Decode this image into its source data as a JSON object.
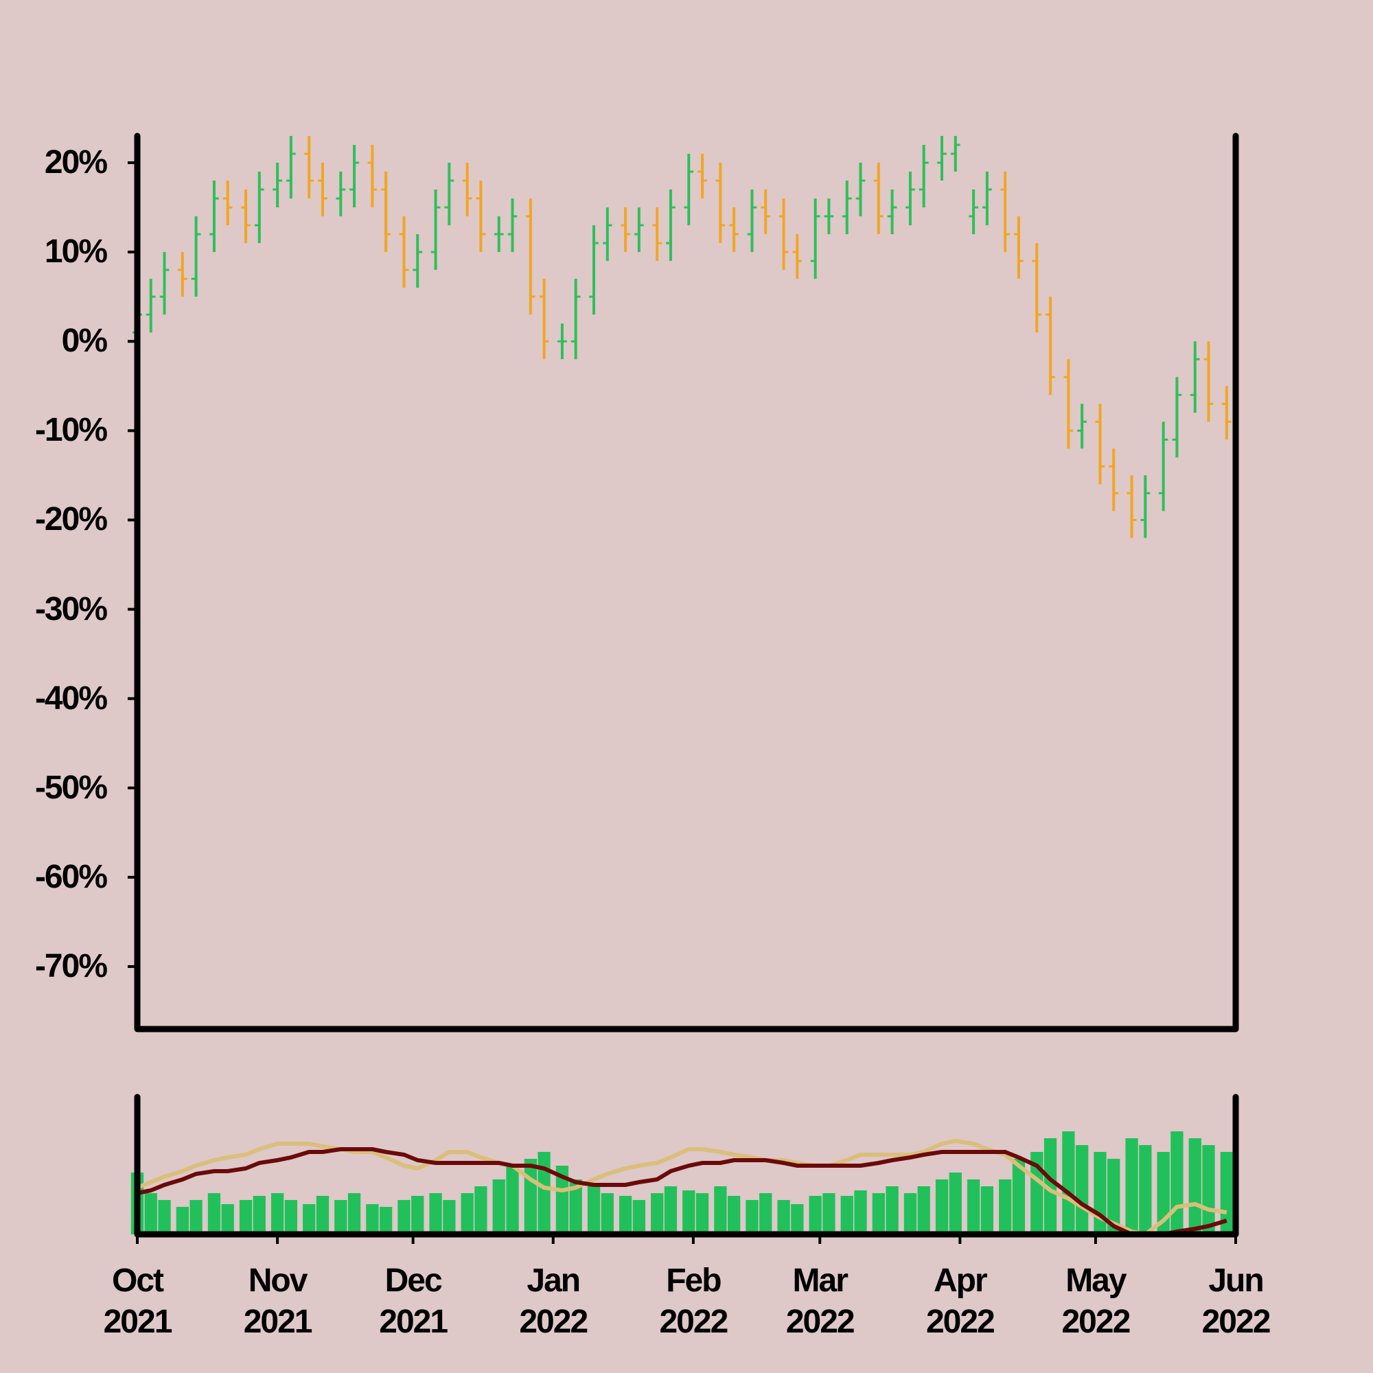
{
  "chart_data": {
    "type": "ohlc",
    "x": [
      "2021-10-01",
      "2021-10-04",
      "2021-10-07",
      "2021-10-11",
      "2021-10-14",
      "2021-10-18",
      "2021-10-21",
      "2021-10-25",
      "2021-10-28",
      "2021-11-01",
      "2021-11-04",
      "2021-11-08",
      "2021-11-11",
      "2021-11-15",
      "2021-11-18",
      "2021-11-22",
      "2021-11-25",
      "2021-11-29",
      "2021-12-02",
      "2021-12-06",
      "2021-12-09",
      "2021-12-13",
      "2021-12-16",
      "2021-12-20",
      "2021-12-23",
      "2021-12-27",
      "2021-12-30",
      "2022-01-03",
      "2022-01-06",
      "2022-01-10",
      "2022-01-13",
      "2022-01-17",
      "2022-01-20",
      "2022-01-24",
      "2022-01-27",
      "2022-01-31",
      "2022-02-03",
      "2022-02-07",
      "2022-02-10",
      "2022-02-14",
      "2022-02-17",
      "2022-02-21",
      "2022-02-24",
      "2022-02-28",
      "2022-03-03",
      "2022-03-07",
      "2022-03-10",
      "2022-03-14",
      "2022-03-17",
      "2022-03-21",
      "2022-03-24",
      "2022-03-28",
      "2022-03-31",
      "2022-04-04",
      "2022-04-07",
      "2022-04-11",
      "2022-04-14",
      "2022-04-18",
      "2022-04-21",
      "2022-04-25",
      "2022-04-28",
      "2022-05-02",
      "2022-05-05",
      "2022-05-09",
      "2022-05-12",
      "2022-05-16",
      "2022-05-19",
      "2022-05-23",
      "2022-05-26",
      "2022-05-30"
    ],
    "open": [
      1,
      3,
      5,
      8,
      7,
      12,
      16,
      15,
      13,
      17,
      18,
      21,
      18,
      16,
      17,
      20,
      17,
      12,
      8,
      10,
      15,
      18,
      16,
      12,
      12,
      14,
      5,
      0,
      0,
      5,
      11,
      13,
      12,
      13,
      11,
      15,
      19,
      18,
      13,
      12,
      15,
      14,
      10,
      9,
      14,
      14,
      16,
      18,
      14,
      15,
      17,
      20,
      21,
      14,
      15,
      17,
      12,
      9,
      3,
      -4,
      -10,
      -9,
      -14,
      -17,
      -20,
      -17,
      -11,
      -6,
      -2,
      -7
    ],
    "high": [
      5,
      7,
      10,
      10,
      14,
      18,
      18,
      17,
      19,
      20,
      23,
      23,
      20,
      19,
      22,
      22,
      19,
      14,
      12,
      17,
      20,
      20,
      18,
      14,
      16,
      16,
      7,
      2,
      7,
      13,
      15,
      15,
      15,
      15,
      17,
      21,
      21,
      20,
      15,
      17,
      17,
      16,
      12,
      16,
      16,
      18,
      20,
      20,
      17,
      19,
      22,
      23,
      23,
      17,
      19,
      19,
      14,
      11,
      5,
      -2,
      -7,
      -7,
      -12,
      -15,
      -15,
      -9,
      -4,
      0,
      0,
      -5
    ],
    "low": [
      -1,
      1,
      3,
      5,
      5,
      10,
      13,
      11,
      11,
      15,
      16,
      16,
      14,
      14,
      15,
      15,
      10,
      6,
      6,
      8,
      13,
      14,
      10,
      10,
      10,
      3,
      -2,
      -2,
      -2,
      3,
      9,
      10,
      10,
      9,
      9,
      13,
      16,
      11,
      10,
      10,
      12,
      8,
      7,
      7,
      12,
      12,
      14,
      12,
      12,
      13,
      15,
      18,
      19,
      12,
      13,
      10,
      7,
      1,
      -6,
      -12,
      -12,
      -16,
      -19,
      -22,
      -22,
      -19,
      -13,
      -8,
      -9,
      -11
    ],
    "close": [
      3,
      5,
      8,
      7,
      12,
      16,
      15,
      13,
      17,
      18,
      21,
      18,
      16,
      17,
      20,
      17,
      12,
      8,
      10,
      15,
      18,
      16,
      12,
      12,
      14,
      5,
      0,
      0,
      5,
      11,
      13,
      12,
      13,
      11,
      15,
      19,
      18,
      13,
      12,
      15,
      14,
      10,
      9,
      14,
      14,
      16,
      18,
      14,
      15,
      17,
      20,
      21,
      22,
      15,
      17,
      12,
      9,
      3,
      -4,
      -10,
      -9,
      -14,
      -17,
      -20,
      -17,
      -11,
      -6,
      -2,
      -7,
      -9
    ],
    "up_color": "#2fbf5a",
    "down_color": "#f0a624",
    "xlim": [
      "2021-10-01",
      "2022-06-01"
    ],
    "ylim": [
      -77,
      23
    ],
    "yticks": [
      {
        "value": 20,
        "label": "20%"
      },
      {
        "value": 10,
        "label": "10%"
      },
      {
        "value": 0,
        "label": "0%"
      },
      {
        "value": -10,
        "label": "-10%"
      },
      {
        "value": -20,
        "label": "-20%"
      },
      {
        "value": -30,
        "label": "-30%"
      },
      {
        "value": -40,
        "label": "-40%"
      },
      {
        "value": -50,
        "label": "-50%"
      },
      {
        "value": -60,
        "label": "-60%"
      },
      {
        "value": -70,
        "label": "-70%"
      }
    ],
    "xticks": [
      {
        "value": "2021-10-01",
        "label": "Oct\n2021"
      },
      {
        "value": "2021-11-01",
        "label": "Nov\n2021"
      },
      {
        "value": "2021-12-01",
        "label": "Dec\n2021"
      },
      {
        "value": "2022-01-01",
        "label": "Jan\n2022"
      },
      {
        "value": "2022-02-01",
        "label": "Feb\n2022"
      },
      {
        "value": "2022-03-01",
        "label": "Mar\n2022"
      },
      {
        "value": "2022-04-01",
        "label": "Apr\n2022"
      },
      {
        "value": "2022-05-01",
        "label": "May\n2022"
      },
      {
        "value": "2022-06-01",
        "label": "Jun\n2022"
      }
    ],
    "volume": {
      "color": "#22c05a",
      "ylim": [
        0,
        100
      ],
      "values": [
        45,
        30,
        25,
        20,
        25,
        30,
        22,
        25,
        28,
        30,
        25,
        22,
        28,
        25,
        30,
        22,
        20,
        25,
        28,
        30,
        25,
        30,
        35,
        40,
        50,
        55,
        60,
        50,
        40,
        35,
        30,
        28,
        25,
        30,
        35,
        32,
        30,
        35,
        28,
        25,
        30,
        25,
        22,
        28,
        30,
        28,
        32,
        30,
        35,
        30,
        35,
        40,
        45,
        40,
        35,
        40,
        55,
        60,
        70,
        75,
        65,
        60,
        55,
        70,
        65,
        60,
        75,
        70,
        65,
        60
      ]
    },
    "y2lim": [
      -15,
      35
    ],
    "series": [
      {
        "color": "#d9bf7a",
        "axis": "y2",
        "values": [
          2,
          4,
          6,
          8,
          10,
          12,
          13,
          14,
          16,
          18,
          18,
          18,
          17,
          16,
          15,
          15,
          13,
          10,
          9,
          12,
          15,
          15,
          13,
          11,
          10,
          5,
          2,
          1,
          2,
          5,
          7,
          9,
          10,
          11,
          13,
          16,
          16,
          15,
          14,
          13,
          12,
          12,
          11,
          10,
          10,
          12,
          14,
          14,
          14,
          14,
          15,
          18,
          19,
          18,
          16,
          14,
          10,
          5,
          1,
          -2,
          -5,
          -9,
          -11,
          -14,
          -15,
          -10,
          -5,
          -4,
          -6,
          -7
        ]
      },
      {
        "color": "#6b0a0a",
        "axis": "y2",
        "values": [
          0,
          1,
          3,
          5,
          7,
          8,
          8,
          9,
          11,
          12,
          13,
          15,
          15,
          16,
          16,
          16,
          15,
          14,
          12,
          11,
          11,
          11,
          11,
          11,
          10,
          10,
          9,
          6,
          4,
          3,
          3,
          3,
          4,
          5,
          8,
          10,
          11,
          11,
          12,
          12,
          12,
          11,
          10,
          10,
          10,
          10,
          10,
          11,
          12,
          13,
          14,
          15,
          15,
          15,
          15,
          15,
          13,
          10,
          5,
          0,
          -4,
          -8,
          -12,
          -15,
          -15,
          -15,
          -14,
          -13,
          -12,
          -10
        ]
      }
    ]
  }
}
